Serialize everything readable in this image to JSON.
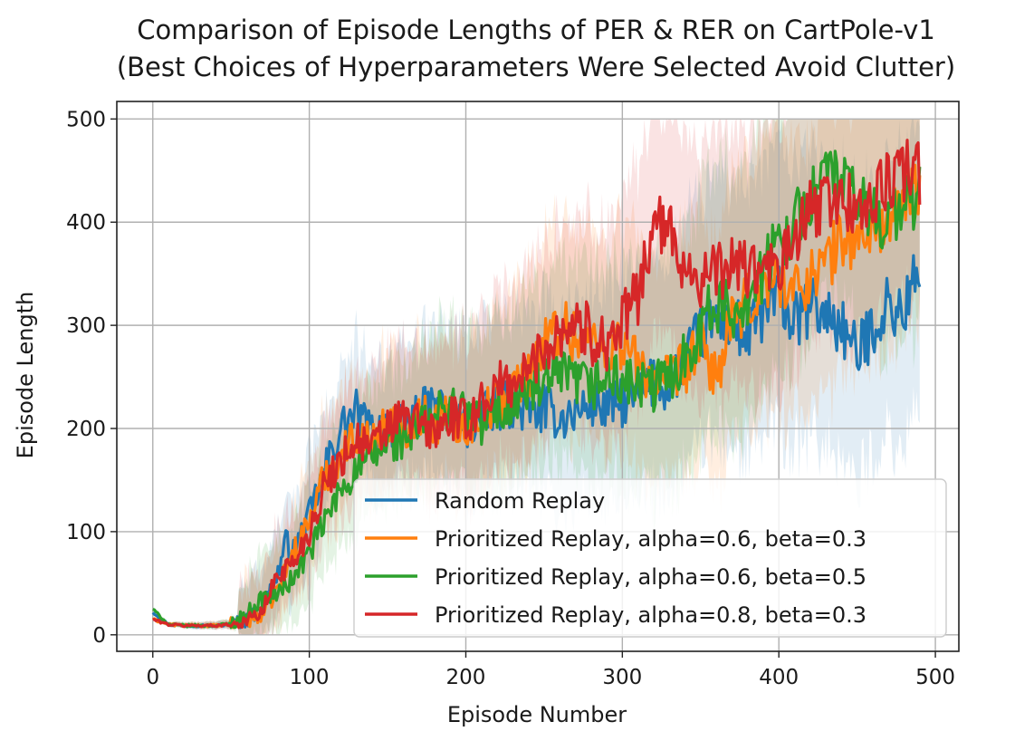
{
  "chart_data": {
    "type": "line",
    "title_line1": "Comparison of Episode Lengths of PER & RER on CartPole-v1",
    "title_line2": "(Best Choices of Hyperparameters Were Selected Avoid Clutter)",
    "xlabel": "Episode Number",
    "ylabel": "Episode Length",
    "xlim": [
      -23,
      515
    ],
    "ylim": [
      -16,
      517
    ],
    "xticks": [
      0,
      100,
      200,
      300,
      400,
      500
    ],
    "yticks": [
      0,
      100,
      200,
      300,
      400,
      500
    ],
    "xtick_labels": [
      "0",
      "100",
      "200",
      "300",
      "400",
      "500"
    ],
    "ytick_labels": [
      "0",
      "100",
      "200",
      "300",
      "400",
      "500"
    ],
    "grid": true,
    "legend_position": "lower-right",
    "series": [
      {
        "name": "Random Replay",
        "color": "#1f77b4",
        "x": [
          0,
          10,
          20,
          30,
          40,
          50,
          60,
          70,
          80,
          85,
          90,
          100,
          110,
          120,
          130,
          140,
          150,
          160,
          170,
          180,
          190,
          200,
          210,
          220,
          230,
          240,
          250,
          260,
          270,
          280,
          290,
          300,
          310,
          320,
          330,
          340,
          350,
          360,
          370,
          380,
          390,
          400,
          410,
          420,
          430,
          440,
          450,
          460,
          470,
          480,
          485,
          490
        ],
        "values": [
          22,
          10,
          9,
          9,
          9,
          10,
          14,
          25,
          60,
          90,
          80,
          115,
          160,
          200,
          215,
          195,
          205,
          200,
          215,
          220,
          215,
          200,
          210,
          220,
          225,
          215,
          220,
          210,
          215,
          225,
          220,
          225,
          230,
          245,
          240,
          270,
          290,
          310,
          300,
          290,
          310,
          330,
          300,
          320,
          310,
          300,
          270,
          300,
          320,
          310,
          345,
          330
        ]
      },
      {
        "name": "Prioritized Replay, alpha=0.6, beta=0.3",
        "color": "#ff7f0e",
        "x": [
          0,
          10,
          20,
          30,
          40,
          50,
          60,
          70,
          80,
          90,
          100,
          110,
          120,
          130,
          140,
          150,
          160,
          170,
          180,
          190,
          200,
          210,
          220,
          230,
          240,
          250,
          260,
          270,
          280,
          290,
          300,
          310,
          320,
          330,
          340,
          350,
          360,
          370,
          380,
          390,
          400,
          410,
          420,
          430,
          440,
          450,
          460,
          470,
          480,
          485,
          490
        ],
        "values": [
          15,
          10,
          9,
          9,
          9,
          10,
          13,
          20,
          45,
          80,
          110,
          155,
          175,
          195,
          185,
          210,
          200,
          215,
          205,
          210,
          200,
          215,
          225,
          235,
          255,
          280,
          300,
          290,
          285,
          275,
          285,
          260,
          250,
          245,
          260,
          280,
          250,
          300,
          320,
          335,
          350,
          330,
          350,
          360,
          385,
          380,
          395,
          400,
          410,
          440,
          430
        ]
      },
      {
        "name": "Prioritized Replay, alpha=0.6, beta=0.5",
        "color": "#2ca02c",
        "x": [
          0,
          10,
          20,
          30,
          40,
          50,
          60,
          70,
          80,
          90,
          100,
          110,
          120,
          130,
          140,
          150,
          160,
          170,
          180,
          190,
          200,
          210,
          220,
          230,
          240,
          250,
          260,
          270,
          280,
          290,
          300,
          310,
          320,
          330,
          340,
          350,
          360,
          370,
          380,
          390,
          400,
          410,
          420,
          430,
          440,
          450,
          460,
          470,
          480,
          485,
          490
        ],
        "values": [
          25,
          10,
          9,
          9,
          9,
          11,
          20,
          35,
          40,
          55,
          80,
          110,
          140,
          160,
          170,
          185,
          190,
          200,
          210,
          225,
          215,
          205,
          215,
          225,
          235,
          240,
          250,
          245,
          240,
          250,
          245,
          240,
          240,
          250,
          270,
          300,
          320,
          310,
          330,
          350,
          380,
          400,
          420,
          450,
          440,
          420,
          410,
          400,
          420,
          415,
          430
        ]
      },
      {
        "name": "Prioritized Replay, alpha=0.8, beta=0.3",
        "color": "#d62728",
        "x": [
          0,
          10,
          20,
          30,
          40,
          50,
          60,
          70,
          80,
          90,
          100,
          110,
          120,
          130,
          140,
          150,
          160,
          170,
          180,
          190,
          200,
          210,
          220,
          230,
          240,
          250,
          260,
          270,
          280,
          290,
          300,
          310,
          320,
          330,
          340,
          350,
          360,
          370,
          380,
          390,
          400,
          410,
          420,
          430,
          440,
          450,
          460,
          470,
          480,
          485,
          490
        ],
        "values": [
          15,
          10,
          9,
          9,
          9,
          10,
          14,
          22,
          60,
          70,
          100,
          145,
          170,
          190,
          180,
          200,
          210,
          205,
          195,
          210,
          205,
          225,
          240,
          245,
          255,
          280,
          295,
          305,
          290,
          285,
          300,
          330,
          400,
          390,
          360,
          345,
          350,
          360,
          355,
          350,
          355,
          380,
          410,
          420,
          425,
          410,
          420,
          440,
          450,
          455,
          445
        ]
      }
    ]
  }
}
